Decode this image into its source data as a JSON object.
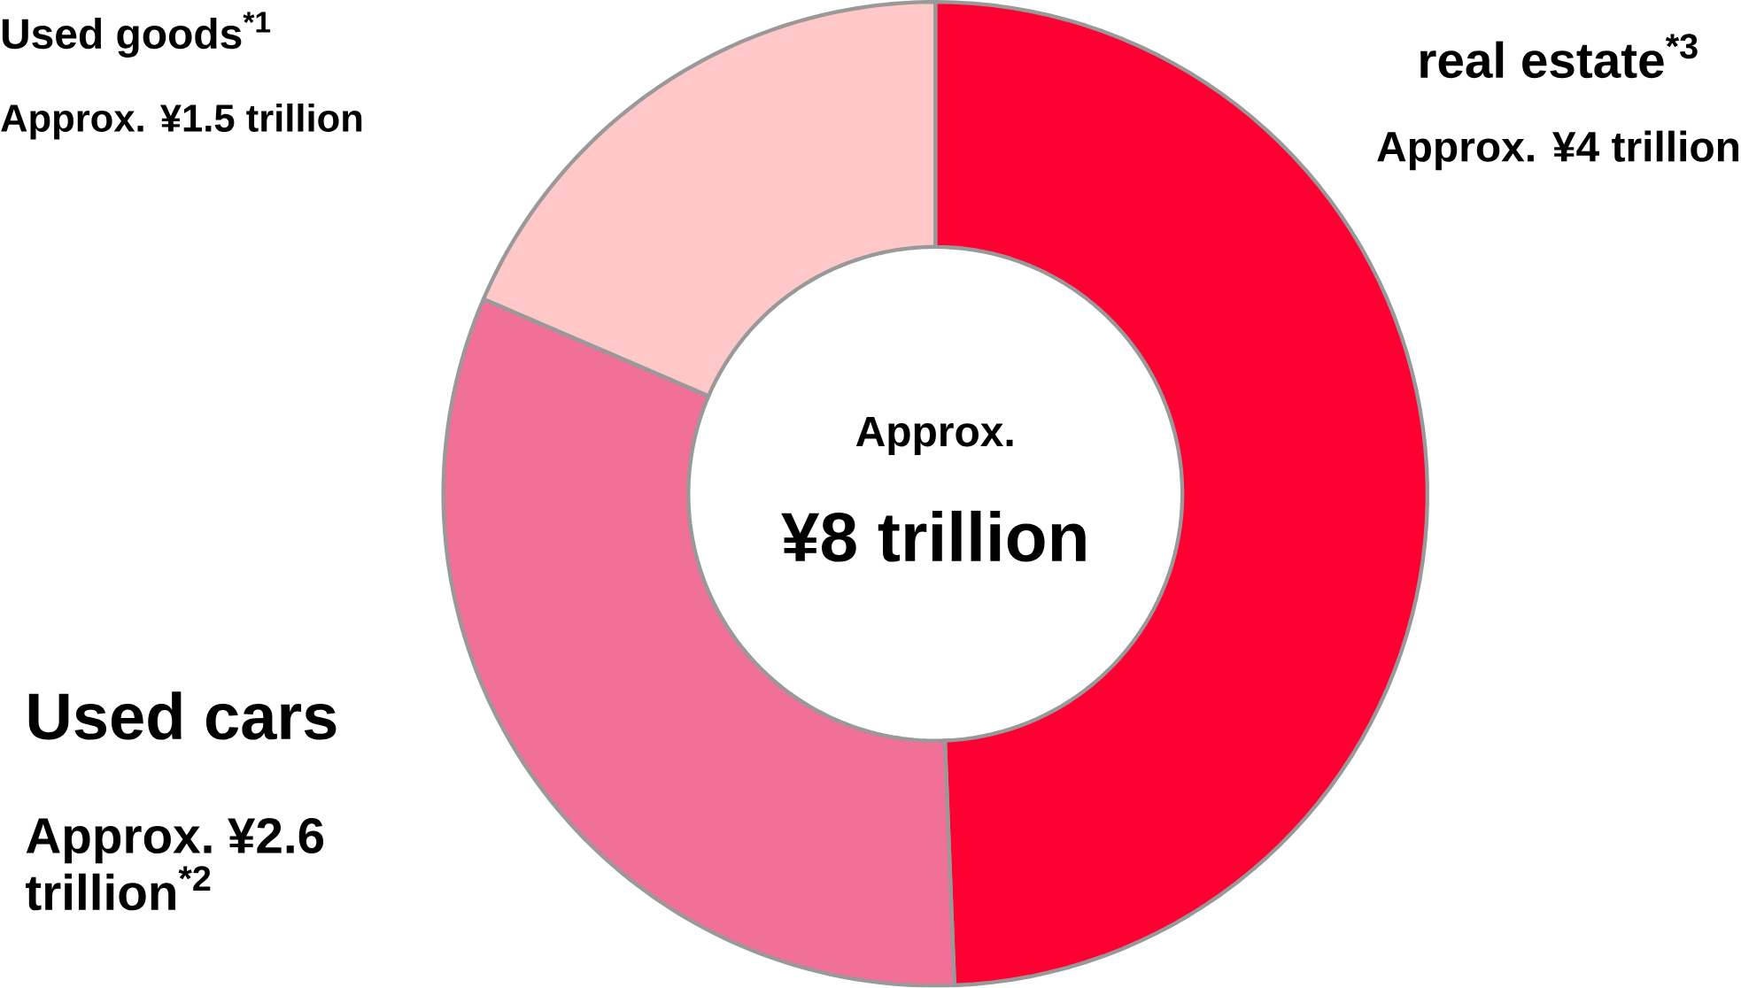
{
  "chart_data": {
    "type": "donut",
    "categories": [
      "real estate$^{*3}$",
      "Used cars",
      "Used goods$^{*1}$"
    ],
    "values": [
      4,
      2.6,
      1.5
    ],
    "colors": [
      "#ff0033",
      "#f07098",
      "#ffc8c8"
    ],
    "value_labels": [
      "Approx. ¥4 trillion",
      "Approx. ¥2.6 trillion$^{*2}$",
      "Approx. ¥1.5 trillion"
    ],
    "annotations": [
      "Approx.",
      "¥8 trillion"
    ]
  }
}
